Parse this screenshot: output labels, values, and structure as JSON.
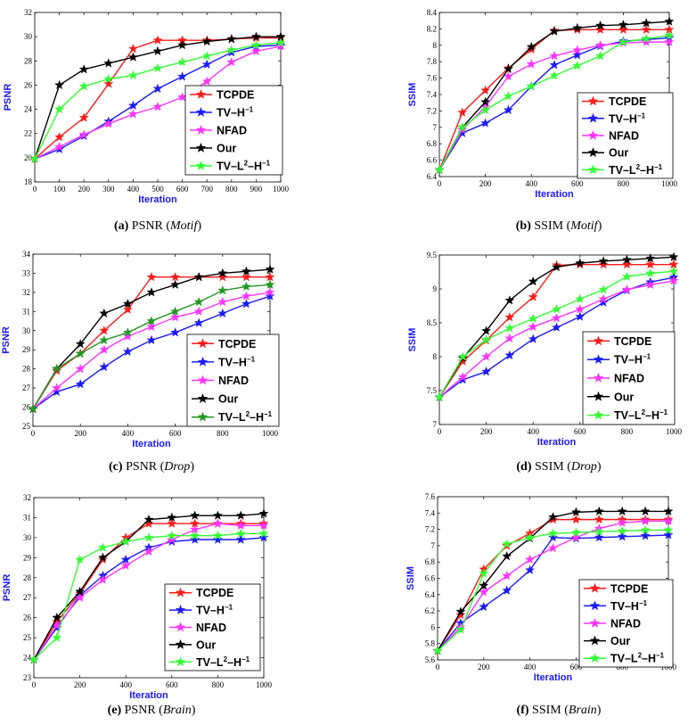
{
  "figure": {
    "colors": {
      "TCPDE": "#ff1a1a",
      "TV-H": "#1a1aff",
      "NFAD": "#ff33ff",
      "Our": "#000000",
      "TV-L2-H": "#33ff33",
      "TV-L2-H-drop": "#229922",
      "axis_label": "#1a1aff"
    }
  },
  "chart_data": [
    {
      "type": "line",
      "id": "a",
      "caption": {
        "label": "(a)",
        "metric": "PSNR",
        "dataset": "Motif"
      },
      "xlabel": "Iteration",
      "ylabel": "PSNR",
      "xlim": [
        0,
        1000
      ],
      "ylim": [
        18,
        32
      ],
      "xticks": [
        0,
        100,
        200,
        300,
        400,
        500,
        600,
        700,
        800,
        900,
        1000
      ],
      "yticks": [
        18,
        20,
        22,
        24,
        26,
        28,
        30,
        32
      ],
      "x": [
        0,
        100,
        200,
        300,
        400,
        500,
        600,
        700,
        800,
        900,
        1000
      ],
      "legend": [
        "TCPDE",
        "TV–H",
        "NFAD",
        "Our",
        "TV–L",
        "−1",
        "2"
      ],
      "series": [
        {
          "name": "TCPDE",
          "values": [
            19.9,
            21.7,
            23.3,
            26.1,
            29.0,
            29.7,
            29.7,
            29.7,
            29.8,
            29.9,
            29.9
          ]
        },
        {
          "name": "TV-H-1",
          "values": [
            19.9,
            20.7,
            21.8,
            23.0,
            24.3,
            25.7,
            26.7,
            27.7,
            28.7,
            29.2,
            29.3
          ]
        },
        {
          "name": "NFAD",
          "values": [
            19.9,
            20.9,
            21.9,
            22.8,
            23.6,
            24.2,
            25.0,
            26.3,
            27.9,
            28.8,
            29.2
          ]
        },
        {
          "name": "Our",
          "values": [
            19.9,
            26.0,
            27.3,
            27.8,
            28.3,
            28.8,
            29.3,
            29.6,
            29.8,
            30.0,
            30.0
          ]
        },
        {
          "name": "TV-L2-H-1",
          "values": [
            19.9,
            24.0,
            25.9,
            26.5,
            26.8,
            27.4,
            27.9,
            28.4,
            28.9,
            29.3,
            29.5
          ]
        }
      ]
    },
    {
      "type": "line",
      "id": "b",
      "caption": {
        "label": "(b)",
        "metric": "SSIM",
        "dataset": "Motif"
      },
      "xlabel": "Iteration",
      "ylabel": "SSIM",
      "xlim": [
        0,
        1000
      ],
      "ylim": [
        6.4,
        8.4
      ],
      "xticks": [
        0,
        200,
        400,
        600,
        800,
        1000
      ],
      "yticks": [
        6.4,
        6.6,
        6.8,
        7,
        7.2,
        7.4,
        7.6,
        7.8,
        8,
        8.2,
        8.4
      ],
      "x": [
        0,
        100,
        200,
        300,
        400,
        500,
        600,
        700,
        800,
        900,
        1000
      ],
      "legend": [
        "TCPDE",
        "TV–H",
        "NFAD",
        "Our",
        "TV–L",
        "−1",
        "2"
      ],
      "series": [
        {
          "name": "TCPDE",
          "values": [
            6.48,
            7.18,
            7.45,
            7.72,
            7.95,
            8.18,
            8.19,
            8.19,
            8.19,
            8.19,
            8.19
          ]
        },
        {
          "name": "TV-H-1",
          "values": [
            6.48,
            6.93,
            7.05,
            7.21,
            7.5,
            7.76,
            7.88,
            7.99,
            8.05,
            8.07,
            8.09
          ]
        },
        {
          "name": "NFAD",
          "values": [
            6.48,
            6.97,
            7.25,
            7.62,
            7.77,
            7.87,
            7.94,
            8.0,
            8.03,
            8.04,
            8.04
          ]
        },
        {
          "name": "Our",
          "values": [
            6.48,
            7.0,
            7.31,
            7.71,
            7.98,
            8.17,
            8.21,
            8.24,
            8.25,
            8.27,
            8.29
          ]
        },
        {
          "name": "TV-L2-H-1",
          "values": [
            6.48,
            7.0,
            7.21,
            7.38,
            7.5,
            7.63,
            7.75,
            7.87,
            8.04,
            8.08,
            8.12
          ]
        }
      ]
    },
    {
      "type": "line",
      "id": "c",
      "caption": {
        "label": "(c)",
        "metric": "PSNR",
        "dataset": "Drop"
      },
      "xlabel": "Iteration",
      "ylabel": "PSNR",
      "xlim": [
        0,
        1000
      ],
      "ylim": [
        25,
        34
      ],
      "xticks": [
        0,
        200,
        400,
        600,
        800,
        1000
      ],
      "yticks": [
        25,
        26,
        27,
        28,
        29,
        30,
        31,
        32,
        33,
        34
      ],
      "x": [
        0,
        100,
        200,
        300,
        400,
        500,
        600,
        700,
        800,
        900,
        1000
      ],
      "legend": [
        "TCPDE",
        "TV–H",
        "NFAD",
        "Our",
        "TV–L",
        "−1",
        "2"
      ],
      "series": [
        {
          "name": "TCPDE",
          "values": [
            25.9,
            27.9,
            28.8,
            30.0,
            31.1,
            32.8,
            32.8,
            32.8,
            32.8,
            32.8,
            32.8
          ]
        },
        {
          "name": "TV-H-1",
          "values": [
            25.9,
            26.8,
            27.2,
            28.1,
            28.9,
            29.5,
            29.9,
            30.4,
            30.9,
            31.4,
            31.8
          ]
        },
        {
          "name": "NFAD",
          "values": [
            25.9,
            27.0,
            28.0,
            29.0,
            29.7,
            30.2,
            30.7,
            31.0,
            31.5,
            31.8,
            32.0
          ]
        },
        {
          "name": "Our",
          "values": [
            25.9,
            28.0,
            29.3,
            30.9,
            31.4,
            32.0,
            32.4,
            32.8,
            33.0,
            33.1,
            33.2
          ]
        },
        {
          "name": "TV-L2-H-1",
          "values": [
            25.9,
            28.0,
            28.8,
            29.5,
            29.9,
            30.5,
            31.0,
            31.5,
            32.1,
            32.3,
            32.4
          ]
        }
      ]
    },
    {
      "type": "line",
      "id": "d",
      "caption": {
        "label": "(d)",
        "metric": "SSIM",
        "dataset": "Drop"
      },
      "xlabel": "Iteration",
      "ylabel": "SSIM",
      "xlim": [
        0,
        1000
      ],
      "ylim": [
        7,
        9.5
      ],
      "xticks": [
        0,
        200,
        400,
        600,
        800,
        1000
      ],
      "yticks": [
        7,
        7.5,
        8,
        8.5,
        9,
        9.5
      ],
      "x": [
        0,
        100,
        200,
        300,
        400,
        500,
        600,
        700,
        800,
        900,
        1000
      ],
      "legend": [
        "TCPDE",
        "TV–H",
        "NFAD",
        "Our",
        "TV–L",
        "−1",
        "2"
      ],
      "series": [
        {
          "name": "TCPDE",
          "values": [
            7.4,
            7.93,
            8.24,
            8.58,
            8.88,
            9.35,
            9.36,
            9.36,
            9.36,
            9.36,
            9.36
          ]
        },
        {
          "name": "TV-H-1",
          "values": [
            7.4,
            7.66,
            7.78,
            8.02,
            8.26,
            8.43,
            8.59,
            8.8,
            8.98,
            9.1,
            9.17
          ]
        },
        {
          "name": "NFAD",
          "values": [
            7.4,
            7.7,
            8.0,
            8.27,
            8.44,
            8.57,
            8.7,
            8.85,
            8.99,
            9.06,
            9.12
          ]
        },
        {
          "name": "Our",
          "values": [
            7.4,
            7.98,
            8.38,
            8.83,
            9.11,
            9.32,
            9.38,
            9.41,
            9.43,
            9.45,
            9.47
          ]
        },
        {
          "name": "TV-L2-H-1",
          "values": [
            7.4,
            8.0,
            8.25,
            8.42,
            8.56,
            8.7,
            8.85,
            8.99,
            9.18,
            9.23,
            9.26
          ]
        }
      ]
    },
    {
      "type": "line",
      "id": "e",
      "caption": {
        "label": "(e)",
        "metric": "PSNR",
        "dataset": "Brain"
      },
      "xlabel": "Iteration",
      "ylabel": "PSNR",
      "xlim": [
        0,
        1000
      ],
      "ylim": [
        23,
        32
      ],
      "xticks": [
        0,
        200,
        400,
        600,
        800,
        1000
      ],
      "yticks": [
        23,
        24,
        25,
        26,
        27,
        28,
        29,
        30,
        31,
        32
      ],
      "x": [
        0,
        100,
        200,
        300,
        400,
        500,
        600,
        700,
        800,
        900,
        1000
      ],
      "legend": [
        "TCPDE",
        "TV–H",
        "NFAD",
        "Our",
        "TV–L",
        "−1",
        "2"
      ],
      "series": [
        {
          "name": "TCPDE",
          "values": [
            23.9,
            25.8,
            27.2,
            28.9,
            30.0,
            30.7,
            30.7,
            30.7,
            30.7,
            30.7,
            30.7
          ]
        },
        {
          "name": "TV-H-1",
          "values": [
            23.9,
            25.5,
            27.1,
            28.1,
            28.9,
            29.5,
            29.8,
            29.9,
            29.9,
            29.9,
            30.0
          ]
        },
        {
          "name": "NFAD",
          "values": [
            23.9,
            25.6,
            27.0,
            27.9,
            28.6,
            29.3,
            29.9,
            30.4,
            30.7,
            30.6,
            30.6
          ]
        },
        {
          "name": "Our",
          "values": [
            23.9,
            26.0,
            27.3,
            29.0,
            29.8,
            30.9,
            31.0,
            31.1,
            31.1,
            31.1,
            31.2
          ]
        },
        {
          "name": "TV-L2-H-1",
          "values": [
            23.9,
            25.0,
            28.9,
            29.5,
            29.8,
            30.0,
            30.1,
            30.1,
            30.1,
            30.2,
            30.2
          ]
        }
      ]
    },
    {
      "type": "line",
      "id": "f",
      "caption": {
        "label": "(f)",
        "metric": "SSIM",
        "dataset": "Brain"
      },
      "xlabel": "Iteration",
      "ylabel": "SSIM",
      "xlim": [
        0,
        1000
      ],
      "ylim": [
        5.6,
        7.6
      ],
      "xticks": [
        0,
        200,
        400,
        600,
        800,
        1000
      ],
      "yticks": [
        5.6,
        5.8,
        6,
        6.2,
        6.4,
        6.6,
        6.8,
        7,
        7.2,
        7.4,
        7.6
      ],
      "x": [
        0,
        100,
        200,
        300,
        400,
        500,
        600,
        700,
        800,
        900,
        1000
      ],
      "legend": [
        "TCPDE",
        "TV–H",
        "NFAD",
        "Our",
        "TV–L",
        "−1",
        "2"
      ],
      "series": [
        {
          "name": "TCPDE",
          "values": [
            5.71,
            6.15,
            6.71,
            7.0,
            7.15,
            7.32,
            7.32,
            7.32,
            7.32,
            7.32,
            7.32
          ]
        },
        {
          "name": "TV-H-1",
          "values": [
            5.71,
            6.05,
            6.25,
            6.45,
            6.7,
            7.1,
            7.09,
            7.1,
            7.11,
            7.12,
            7.13
          ]
        },
        {
          "name": "NFAD",
          "values": [
            5.71,
            6.0,
            6.43,
            6.63,
            6.83,
            6.97,
            7.1,
            7.21,
            7.28,
            7.3,
            7.3
          ]
        },
        {
          "name": "Our",
          "values": [
            5.71,
            6.19,
            6.51,
            6.87,
            7.09,
            7.35,
            7.41,
            7.42,
            7.42,
            7.42,
            7.42
          ]
        },
        {
          "name": "TV-L2-H-1",
          "values": [
            5.71,
            5.97,
            6.66,
            7.02,
            7.1,
            7.15,
            7.16,
            7.17,
            7.18,
            7.19,
            7.19
          ]
        }
      ]
    }
  ]
}
